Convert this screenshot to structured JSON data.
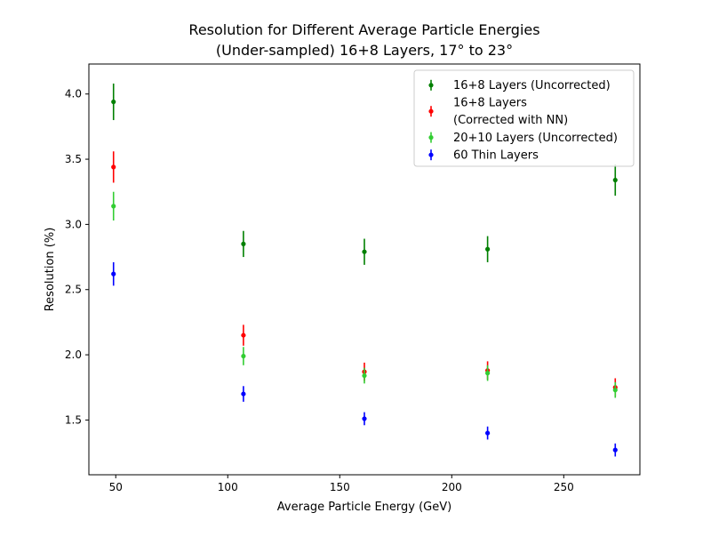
{
  "chart_data": {
    "type": "scatter",
    "title_line1": "Resolution for Different Average Particle Energies",
    "title_line2": "(Under-sampled) 16+8 Layers, 17° to 23°",
    "xlabel": "Average Particle Energy (GeV)",
    "ylabel": "Resolution (%)",
    "xlim": [
      38,
      284
    ],
    "ylim": [
      1.08,
      4.23
    ],
    "xticks": [
      50,
      100,
      150,
      200,
      250
    ],
    "xtick_labels": [
      "50",
      "100",
      "150",
      "200",
      "250"
    ],
    "yticks": [
      1.5,
      2.0,
      2.5,
      3.0,
      3.5,
      4.0
    ],
    "ytick_labels": [
      "1.5",
      "2.0",
      "2.5",
      "3.0",
      "3.5",
      "4.0"
    ],
    "grid": false,
    "legend_position": "top-right",
    "series": [
      {
        "name": "16+8 Layers (Uncorrected)",
        "legend_lines": [
          "16+8 Layers (Uncorrected)"
        ],
        "color": "#008000",
        "points": [
          {
            "x": 49,
            "y": 3.94,
            "err": 0.14
          },
          {
            "x": 107,
            "y": 2.85,
            "err": 0.1
          },
          {
            "x": 161,
            "y": 2.79,
            "err": 0.1
          },
          {
            "x": 216,
            "y": 2.81,
            "err": 0.1
          },
          {
            "x": 273,
            "y": 3.34,
            "err": 0.12
          }
        ]
      },
      {
        "name": "16+8 Layers (Corrected with NN)",
        "legend_lines": [
          "16+8 Layers",
          "(Corrected with NN)"
        ],
        "color": "#ff0000",
        "points": [
          {
            "x": 49,
            "y": 3.44,
            "err": 0.12
          },
          {
            "x": 107,
            "y": 2.15,
            "err": 0.08
          },
          {
            "x": 161,
            "y": 1.87,
            "err": 0.07
          },
          {
            "x": 216,
            "y": 1.88,
            "err": 0.07
          },
          {
            "x": 273,
            "y": 1.75,
            "err": 0.07
          }
        ]
      },
      {
        "name": "20+10 Layers (Uncorrected)",
        "legend_lines": [
          "20+10 Layers (Uncorrected)"
        ],
        "color": "#32cd32",
        "points": [
          {
            "x": 49,
            "y": 3.14,
            "err": 0.11
          },
          {
            "x": 107,
            "y": 1.99,
            "err": 0.07
          },
          {
            "x": 161,
            "y": 1.84,
            "err": 0.06
          },
          {
            "x": 216,
            "y": 1.86,
            "err": 0.06
          },
          {
            "x": 273,
            "y": 1.73,
            "err": 0.06
          }
        ]
      },
      {
        "name": "60 Thin Layers",
        "legend_lines": [
          "60 Thin Layers"
        ],
        "color": "#0000ff",
        "points": [
          {
            "x": 49,
            "y": 2.62,
            "err": 0.09
          },
          {
            "x": 107,
            "y": 1.7,
            "err": 0.06
          },
          {
            "x": 161,
            "y": 1.51,
            "err": 0.05
          },
          {
            "x": 216,
            "y": 1.4,
            "err": 0.05
          },
          {
            "x": 273,
            "y": 1.27,
            "err": 0.05
          }
        ]
      }
    ]
  }
}
